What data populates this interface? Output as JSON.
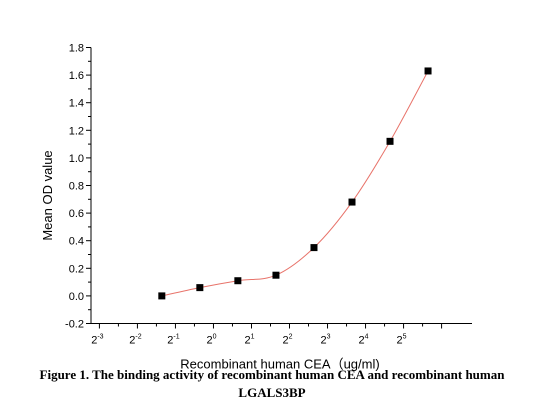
{
  "chart_data": {
    "type": "scatter",
    "xlabel": "Recombinant human  CEA（ug/ml)",
    "ylabel": "Mean OD value",
    "x_scale": "log2",
    "xlim_exp": [
      -3.3,
      6.8
    ],
    "ylim": [
      -0.2,
      1.8
    ],
    "x_ticks": [
      {
        "base": "2",
        "exp": "-3"
      },
      {
        "base": "2",
        "exp": "-2"
      },
      {
        "base": "2",
        "exp": "-1"
      },
      {
        "base": "2",
        "exp": "0"
      },
      {
        "base": "2",
        "exp": "1"
      },
      {
        "base": "2",
        "exp": "2"
      },
      {
        "base": "2",
        "exp": "3"
      },
      {
        "base": "2",
        "exp": "4"
      },
      {
        "base": "2",
        "exp": "5"
      }
    ],
    "y_ticks": [
      "-0.2",
      "0.0",
      "0.2",
      "0.4",
      "0.6",
      "0.8",
      "1.0",
      "1.2",
      "1.4",
      "1.6",
      "1.8"
    ],
    "points": [
      {
        "x": 0.39,
        "y": 0.0
      },
      {
        "x": 0.78,
        "y": 0.06
      },
      {
        "x": 1.56,
        "y": 0.11
      },
      {
        "x": 3.125,
        "y": 0.15
      },
      {
        "x": 6.25,
        "y": 0.35
      },
      {
        "x": 12.5,
        "y": 0.68
      },
      {
        "x": 25,
        "y": 1.12
      },
      {
        "x": 50,
        "y": 1.63
      }
    ],
    "fit_line_color": "#e8736a",
    "marker_color": "#000000",
    "marker": "square",
    "grid": false
  },
  "caption": {
    "line1": "Figure 1. The binding activity of recombinant human CEA and recombinant human",
    "line2": "LGALS3BP"
  }
}
